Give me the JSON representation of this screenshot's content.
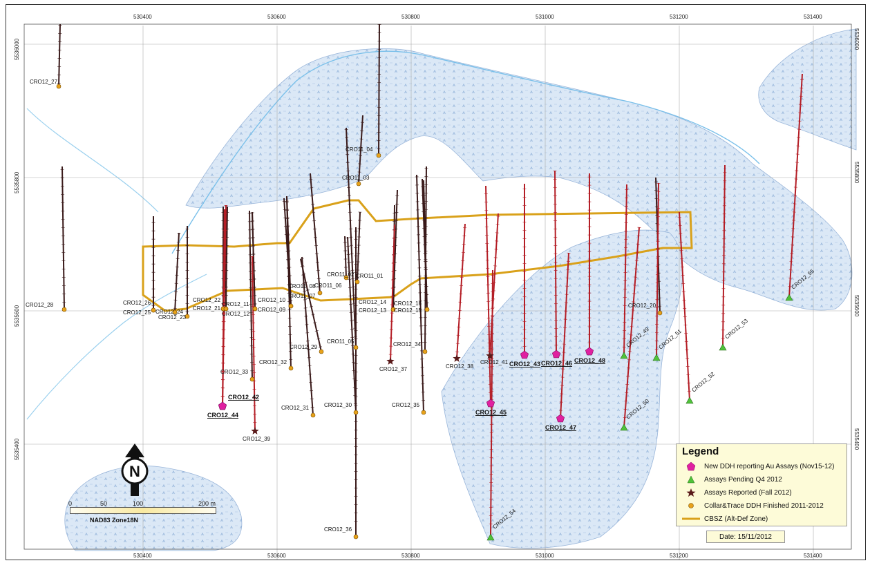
{
  "map": {
    "easting_ticks": [
      "530400",
      "530600",
      "530800",
      "531000",
      "531200",
      "531400"
    ],
    "northing_ticks": [
      "5536000",
      "5535800",
      "5535600",
      "5535400"
    ],
    "colors": {
      "zone_outline": "#d9a11a",
      "drill_trace": "#b41e26",
      "old_trace": "#3a1a1a",
      "collar": "#e8a21a",
      "new_ddh": "#e020a0",
      "pending": "#4fc23a",
      "reported": "#5a1a1a",
      "water": "#9ad0ee",
      "wetland": "#d8e8f6"
    },
    "holes": [
      {
        "id": "CRO12_27",
        "type": "collar",
        "lbl": "CRO12_27"
      },
      {
        "id": "CRO12_28",
        "type": "collar",
        "lbl": "CRO12_28"
      },
      {
        "id": "CRO12_26",
        "type": "collar",
        "lbl": "CRO12_26"
      },
      {
        "id": "CRO12_25",
        "type": "collar",
        "lbl": "CRO12_25"
      },
      {
        "id": "CRO12_24",
        "type": "collar",
        "lbl": "CRO12_24"
      },
      {
        "id": "CRO12_23",
        "type": "collar",
        "lbl": "CRO12_23"
      },
      {
        "id": "CRO12_22",
        "type": "collar",
        "lbl": "CRO12_22"
      },
      {
        "id": "CRO12_21",
        "type": "collar",
        "lbl": "CRO12_21"
      },
      {
        "id": "CRO12_11",
        "type": "collar",
        "lbl": "CRO12_11"
      },
      {
        "id": "CRO12_12",
        "type": "collar",
        "lbl": "CRO12_12"
      },
      {
        "id": "CRO12_10",
        "type": "collar",
        "lbl": "CRO12_10"
      },
      {
        "id": "CRO12_09",
        "type": "collar",
        "lbl": "CRO12_09"
      },
      {
        "id": "CRO11_08",
        "type": "collar",
        "lbl": "CRO11_08"
      },
      {
        "id": "CRO11_07",
        "type": "collar",
        "lbl": "CRO11_07"
      },
      {
        "id": "CRO11_06",
        "type": "collar",
        "lbl": "CRO11_06"
      },
      {
        "id": "CRO11_02",
        "type": "collar",
        "lbl": "CRO11_02"
      },
      {
        "id": "CRO11_01",
        "type": "collar",
        "lbl": "CRO11_01"
      },
      {
        "id": "CRO11_03",
        "type": "collar",
        "lbl": "CRO11_03"
      },
      {
        "id": "CRO11_04",
        "type": "collar",
        "lbl": "CRO11_04"
      },
      {
        "id": "CRO11_05",
        "type": "collar",
        "lbl": "CRO11_05"
      },
      {
        "id": "CRO12_14",
        "type": "collar",
        "lbl": "CRO12_14"
      },
      {
        "id": "CRO12_13",
        "type": "collar",
        "lbl": "CRO12_13"
      },
      {
        "id": "CRO12_16",
        "type": "collar",
        "lbl": "CRO12_16"
      },
      {
        "id": "CRO12_15",
        "type": "collar",
        "lbl": "CRO12_15"
      },
      {
        "id": "CRO12_29",
        "type": "collar",
        "lbl": "CRO12_29"
      },
      {
        "id": "CRO12_32",
        "type": "collar",
        "lbl": "CRO12_32"
      },
      {
        "id": "CRO12_33",
        "type": "collar",
        "lbl": "CRO12_33"
      },
      {
        "id": "CRO12_31",
        "type": "collar",
        "lbl": "CRO12_31"
      },
      {
        "id": "CRO12_30",
        "type": "collar",
        "lbl": "CRO12_30"
      },
      {
        "id": "CRO12_34",
        "type": "collar",
        "lbl": "CRO12_34"
      },
      {
        "id": "CRO12_35",
        "type": "collar",
        "lbl": "CRO12_35"
      },
      {
        "id": "CRO12_36",
        "type": "collar",
        "lbl": "CRO12_36"
      },
      {
        "id": "CRO12_20",
        "type": "collar",
        "lbl": "CRO12_20"
      },
      {
        "id": "CRO12_42",
        "type": "new",
        "lbl": "CRO12_42"
      },
      {
        "id": "CRO12_44",
        "type": "new",
        "lbl": "CRO12_44"
      },
      {
        "id": "CRO12_43",
        "type": "new",
        "lbl": "CRO12_43"
      },
      {
        "id": "CRO12_46",
        "type": "new",
        "lbl": "CRO12_46"
      },
      {
        "id": "CRO12_48",
        "type": "new",
        "lbl": "CRO12_48"
      },
      {
        "id": "CRO12_45",
        "type": "new",
        "lbl": "CRO12_45"
      },
      {
        "id": "CRO12_47",
        "type": "new",
        "lbl": "CRO12_47"
      },
      {
        "id": "CRO12_39",
        "type": "reported",
        "lbl": "CRO12_39"
      },
      {
        "id": "CRO12_37",
        "type": "reported",
        "lbl": "CRO12_37"
      },
      {
        "id": "CRO12_38",
        "type": "reported",
        "lbl": "CRO12_38"
      },
      {
        "id": "CRO12_41",
        "type": "reported",
        "lbl": "CRO12_41"
      },
      {
        "id": "CRO12_49",
        "type": "pending",
        "lbl": "CRO12_49"
      },
      {
        "id": "CRO12_51",
        "type": "pending",
        "lbl": "CRO12_51"
      },
      {
        "id": "CRO12_53",
        "type": "pending",
        "lbl": "CRO12_53"
      },
      {
        "id": "CRO12_52",
        "type": "pending",
        "lbl": "CRO12_52"
      },
      {
        "id": "CRO12_50",
        "type": "pending",
        "lbl": "CRO12_50"
      },
      {
        "id": "CRO12_55",
        "type": "pending",
        "lbl": "CRO12_55"
      },
      {
        "id": "CRO12_54",
        "type": "pending",
        "lbl": "CRO12_54"
      }
    ]
  },
  "legend": {
    "title": "Legend",
    "items": [
      {
        "label": "New DDH reporting Au Assays (Nov15-12)",
        "symbol": "pentagon-icon"
      },
      {
        "label": "Assays Pending Q4 2012",
        "symbol": "triangle-icon"
      },
      {
        "label": "Assays Reported (Fall 2012)",
        "symbol": "star-icon"
      },
      {
        "label": "Collar&Trace DDH Finished 2011-2012",
        "symbol": "circle-icon"
      },
      {
        "label": "CBSZ (Alt-Def Zone)",
        "symbol": "line-icon"
      }
    ],
    "date": "Date: 15/11/2012"
  },
  "scale": {
    "labels": [
      "0",
      "50",
      "100",
      "200 m"
    ],
    "projection": "NAD83 Zone18N"
  },
  "north_arrow": {
    "letter": "N"
  }
}
